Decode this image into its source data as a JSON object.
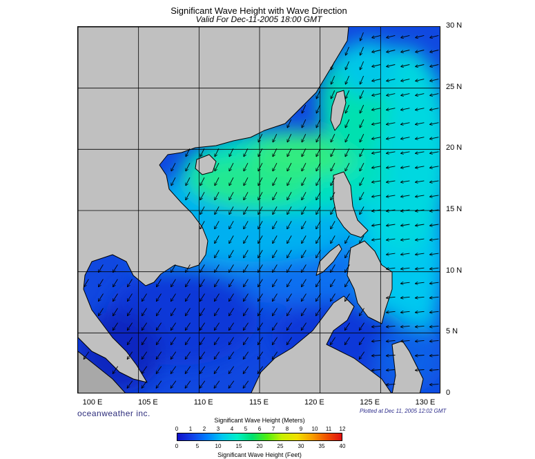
{
  "title": "Significant Wave Height with Wave Direction",
  "subtitle": "Valid For Dec-11-2005 18:00 GMT",
  "brand": "oceanweather inc.",
  "plotted_at": "Plotted at Dec 11, 2005 12:02 GMT",
  "axes": {
    "lon_labels": [
      "100 E",
      "105 E",
      "110 E",
      "115 E",
      "120 E",
      "125 E",
      "130 E"
    ],
    "lat_labels": [
      "30 N",
      "25 N",
      "20 N",
      "15 N",
      "10 N",
      "5 N",
      "0"
    ],
    "lon_range": [
      100,
      130
    ],
    "lat_range": [
      0,
      30
    ],
    "grid_spacing_deg": 5
  },
  "colorbar": {
    "meters_title": "Significant Wave Height (Meters)",
    "meters_ticks": [
      "0",
      "1",
      "2",
      "3",
      "4",
      "5",
      "6",
      "7",
      "8",
      "9",
      "10",
      "11",
      "12"
    ],
    "feet_title": "Significant Wave Height (Feet)",
    "feet_ticks": [
      "0",
      "5",
      "10",
      "15",
      "20",
      "25",
      "30",
      "35",
      "40"
    ],
    "colors": [
      "#1010c8",
      "#1040e8",
      "#0080ff",
      "#00c8f0",
      "#00f0c8",
      "#00e070",
      "#50ee10",
      "#c8f000",
      "#f0e000",
      "#f8a000",
      "#f05000",
      "#e01010"
    ]
  },
  "colors": {
    "land": "#c0c0c0",
    "arrow": "#000000",
    "grid": "#000000"
  },
  "wave_direction": "northeast swell propagating toward the southwest"
}
